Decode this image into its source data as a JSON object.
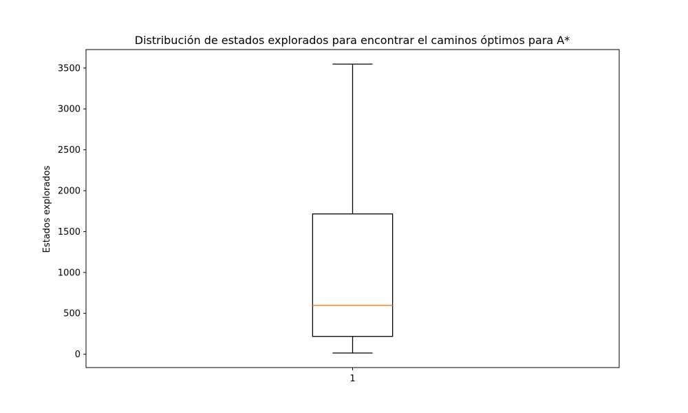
{
  "chart_data": {
    "type": "boxplot",
    "title": "Distribución de estados explorados para encontrar el caminos óptimos para A*",
    "xlabel": "",
    "ylabel": "Estados explorados",
    "categories": [
      "1"
    ],
    "boxes": [
      {
        "label": "1",
        "whisker_low": 15,
        "q1": 218,
        "median": 598,
        "q3": 1716,
        "whisker_high": 3548
      }
    ],
    "yticks": [
      0,
      500,
      1000,
      1500,
      2000,
      2500,
      3000,
      3500
    ],
    "ylim": [
      -163,
      3726
    ],
    "grid": false,
    "colors": {
      "box": "#000000",
      "median": "#ff7f0e",
      "axes": "#000000"
    }
  }
}
